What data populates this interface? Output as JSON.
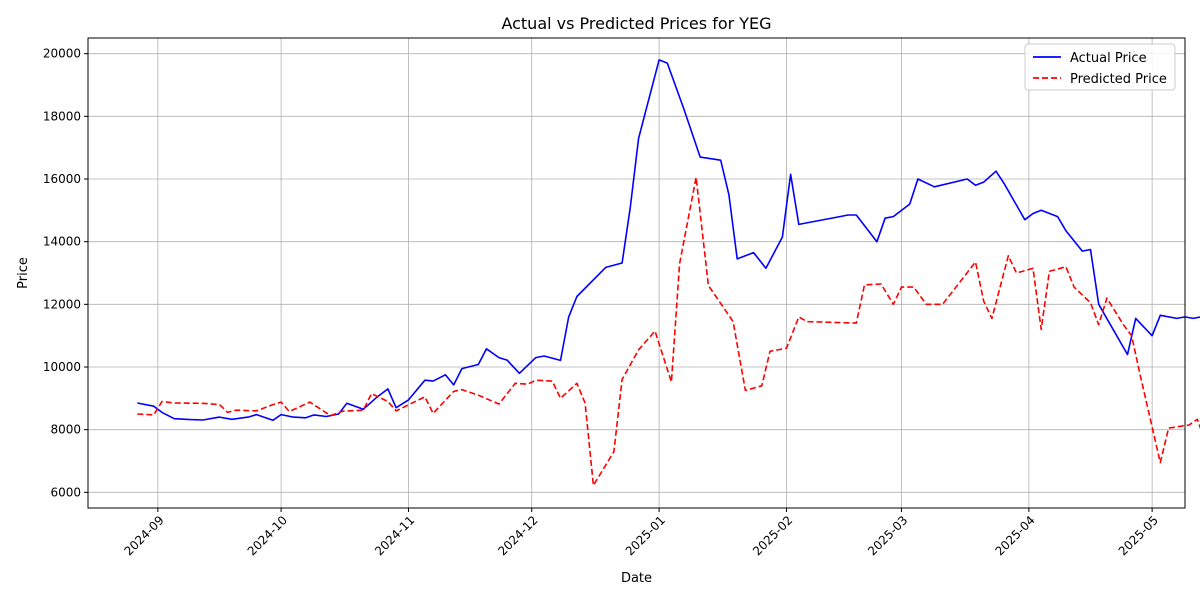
{
  "chart_data": {
    "type": "line",
    "title": "Actual vs Predicted Prices for YEG",
    "xlabel": "Date",
    "ylabel": "Price",
    "xlim": [
      "2024-08-15",
      "2025-05-09"
    ],
    "ylim": [
      5500,
      20500
    ],
    "yticks": [
      6000,
      8000,
      10000,
      12000,
      14000,
      16000,
      18000,
      20000
    ],
    "xticks": [
      "2024-09-01",
      "2024-10-01",
      "2024-11-01",
      "2024-12-01",
      "2025-01-01",
      "2025-02-01",
      "2025-03-01",
      "2025-04-01",
      "2025-05-01"
    ],
    "xtick_labels": [
      "2024-09",
      "2024-10",
      "2024-11",
      "2024-12",
      "2025-01",
      "2025-02",
      "2025-03",
      "2025-04",
      "2025-05"
    ],
    "grid": true,
    "legend": "top-right",
    "series": [
      {
        "name": "Actual Price",
        "color": "#0000ff",
        "style": "solid",
        "points": [
          [
            "2024-08-27",
            8850
          ],
          [
            "2024-08-31",
            8750
          ],
          [
            "2024-09-02",
            8550
          ],
          [
            "2024-09-05",
            8350
          ],
          [
            "2024-09-09",
            8320
          ],
          [
            "2024-09-12",
            8310
          ],
          [
            "2024-09-16",
            8400
          ],
          [
            "2024-09-19",
            8330
          ],
          [
            "2024-09-23",
            8400
          ],
          [
            "2024-09-25",
            8480
          ],
          [
            "2024-09-29",
            8300
          ],
          [
            "2024-10-01",
            8480
          ],
          [
            "2024-10-04",
            8400
          ],
          [
            "2024-10-07",
            8380
          ],
          [
            "2024-10-09",
            8470
          ],
          [
            "2024-10-12",
            8420
          ],
          [
            "2024-10-15",
            8500
          ],
          [
            "2024-10-17",
            8840
          ],
          [
            "2024-10-21",
            8650
          ],
          [
            "2024-10-24",
            9000
          ],
          [
            "2024-10-27",
            9300
          ],
          [
            "2024-10-29",
            8700
          ],
          [
            "2024-11-01",
            8950
          ],
          [
            "2024-11-05",
            9580
          ],
          [
            "2024-11-07",
            9550
          ],
          [
            "2024-11-10",
            9750
          ],
          [
            "2024-11-12",
            9430
          ],
          [
            "2024-11-14",
            9950
          ],
          [
            "2024-11-18",
            10080
          ],
          [
            "2024-11-20",
            10580
          ],
          [
            "2024-11-23",
            10300
          ],
          [
            "2024-11-25",
            10220
          ],
          [
            "2024-11-28",
            9800
          ],
          [
            "2024-12-02",
            10300
          ],
          [
            "2024-12-04",
            10350
          ],
          [
            "2024-12-08",
            10210
          ],
          [
            "2024-12-10",
            11600
          ],
          [
            "2024-12-12",
            12250
          ],
          [
            "2024-12-19",
            13180
          ],
          [
            "2024-12-23",
            13320
          ],
          [
            "2024-12-25",
            15100
          ],
          [
            "2024-12-27",
            17300
          ],
          [
            "2025-01-01",
            19800
          ],
          [
            "2025-01-03",
            19700
          ],
          [
            "2025-01-07",
            18250
          ],
          [
            "2025-01-11",
            16700
          ],
          [
            "2025-01-16",
            16600
          ],
          [
            "2025-01-18",
            15500
          ],
          [
            "2025-01-20",
            13450
          ],
          [
            "2025-01-24",
            13650
          ],
          [
            "2025-01-27",
            13150
          ],
          [
            "2025-01-31",
            14150
          ],
          [
            "2025-02-02",
            16150
          ],
          [
            "2025-02-04",
            14550
          ],
          [
            "2025-02-14",
            14800
          ],
          [
            "2025-02-16",
            14850
          ],
          [
            "2025-02-18",
            14850
          ],
          [
            "2025-02-23",
            14000
          ],
          [
            "2025-02-25",
            14750
          ],
          [
            "2025-02-27",
            14800
          ],
          [
            "2025-03-03",
            15200
          ],
          [
            "2025-03-05",
            16000
          ],
          [
            "2025-03-09",
            15750
          ],
          [
            "2025-03-17",
            16000
          ],
          [
            "2025-03-19",
            15800
          ],
          [
            "2025-03-21",
            15900
          ],
          [
            "2025-03-24",
            16250
          ],
          [
            "2025-03-26",
            15850
          ],
          [
            "2025-03-31",
            14700
          ],
          [
            "2025-04-02",
            14900
          ],
          [
            "2025-04-04",
            15000
          ],
          [
            "2025-04-08",
            14800
          ],
          [
            "2025-04-10",
            14350
          ],
          [
            "2025-04-14",
            13700
          ],
          [
            "2025-04-16",
            13750
          ],
          [
            "2025-04-18",
            12000
          ],
          [
            "2025-04-25",
            10400
          ],
          [
            "2025-04-27",
            11550
          ],
          [
            "2025-05-01",
            11000
          ],
          [
            "2025-05-03",
            11650
          ],
          [
            "2025-05-07",
            11550
          ],
          [
            "2025-05-09",
            11600
          ],
          [
            "2025-05-11",
            11550
          ],
          [
            "2025-05-21",
            11800
          ]
        ]
      },
      {
        "name": "Predicted Price",
        "color": "#ff0000",
        "style": "dashed",
        "points": [
          [
            "2024-08-27",
            8500
          ],
          [
            "2024-08-31",
            8470
          ],
          [
            "2024-09-02",
            8900
          ],
          [
            "2024-09-05",
            8850
          ],
          [
            "2024-09-12",
            8840
          ],
          [
            "2024-09-16",
            8800
          ],
          [
            "2024-09-18",
            8550
          ],
          [
            "2024-09-20",
            8620
          ],
          [
            "2024-09-25",
            8600
          ],
          [
            "2024-09-29",
            8800
          ],
          [
            "2024-10-01",
            8880
          ],
          [
            "2024-10-03",
            8580
          ],
          [
            "2024-10-08",
            8880
          ],
          [
            "2024-10-11",
            8620
          ],
          [
            "2024-10-13",
            8450
          ],
          [
            "2024-10-16",
            8590
          ],
          [
            "2024-10-21",
            8620
          ],
          [
            "2024-10-23",
            9150
          ],
          [
            "2024-10-27",
            8900
          ],
          [
            "2024-10-29",
            8600
          ],
          [
            "2024-11-05",
            9050
          ],
          [
            "2024-11-07",
            8520
          ],
          [
            "2024-11-12",
            9220
          ],
          [
            "2024-11-14",
            9280
          ],
          [
            "2024-11-18",
            9100
          ],
          [
            "2024-11-23",
            8820
          ],
          [
            "2024-11-27",
            9480
          ],
          [
            "2024-11-30",
            9450
          ],
          [
            "2024-12-02",
            9580
          ],
          [
            "2024-12-06",
            9550
          ],
          [
            "2024-12-08",
            9000
          ],
          [
            "2024-12-12",
            9480
          ],
          [
            "2024-12-14",
            8850
          ],
          [
            "2024-12-16",
            6220
          ],
          [
            "2024-12-21",
            7300
          ],
          [
            "2024-12-23",
            9600
          ],
          [
            "2024-12-27",
            10550
          ],
          [
            "2024-12-31",
            11150
          ],
          [
            "2025-01-04",
            9520
          ],
          [
            "2025-01-06",
            13300
          ],
          [
            "2025-01-10",
            16050
          ],
          [
            "2025-01-13",
            12600
          ],
          [
            "2025-01-19",
            11450
          ],
          [
            "2025-01-22",
            9250
          ],
          [
            "2025-01-26",
            9400
          ],
          [
            "2025-01-28",
            10500
          ],
          [
            "2025-02-01",
            10600
          ],
          [
            "2025-02-04",
            11600
          ],
          [
            "2025-02-06",
            11450
          ],
          [
            "2025-02-18",
            11400
          ],
          [
            "2025-02-20",
            12620
          ],
          [
            "2025-02-24",
            12650
          ],
          [
            "2025-02-27",
            12000
          ],
          [
            "2025-03-01",
            12550
          ],
          [
            "2025-03-04",
            12550
          ],
          [
            "2025-03-07",
            12000
          ],
          [
            "2025-03-11",
            12000
          ],
          [
            "2025-03-19",
            13350
          ],
          [
            "2025-03-21",
            12100
          ],
          [
            "2025-03-23",
            11550
          ],
          [
            "2025-03-27",
            13550
          ],
          [
            "2025-03-29",
            13000
          ],
          [
            "2025-04-02",
            13150
          ],
          [
            "2025-04-04",
            11200
          ],
          [
            "2025-04-06",
            13050
          ],
          [
            "2025-04-10",
            13200
          ],
          [
            "2025-04-12",
            12550
          ],
          [
            "2025-04-16",
            12050
          ],
          [
            "2025-04-18",
            11350
          ],
          [
            "2025-04-20",
            12200
          ],
          [
            "2025-04-24",
            11350
          ],
          [
            "2025-04-26",
            11000
          ],
          [
            "2025-04-28",
            9800
          ],
          [
            "2025-05-03",
            6950
          ],
          [
            "2025-05-05",
            8050
          ],
          [
            "2025-05-10",
            8150
          ],
          [
            "2025-05-12",
            8330
          ],
          [
            "2025-05-14",
            7600
          ],
          [
            "2025-05-27",
            9800
          ]
        ]
      }
    ]
  }
}
